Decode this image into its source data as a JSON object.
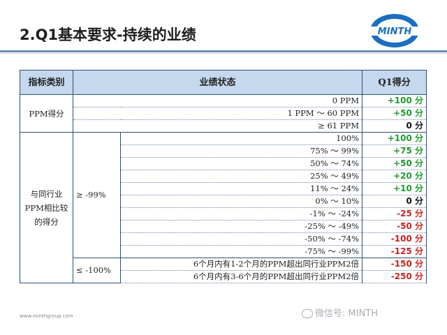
{
  "title": "2.Q1基本要求-持续的业绩",
  "logo_text": "MINTH",
  "colors": {
    "positive": "#1f9a2f",
    "negative": "#d11f1f",
    "header_bg": "#c5d8ee",
    "accent": "#6b8fb5"
  },
  "table": {
    "headers": [
      "指标类别",
      "业绩状态",
      "Q1得分"
    ],
    "ppm": {
      "label": "PPM得分",
      "rows": [
        {
          "status": "0 PPM",
          "score": "+100 分"
        },
        {
          "status": "1 PPM ～ 60 PPM",
          "score": "+50 分"
        },
        {
          "status": "≥ 61 PPM",
          "score": "0 分"
        }
      ]
    },
    "industry": {
      "label": "与同行业PPM相比较的得分",
      "group_a": {
        "label": "≥ -99%",
        "rows": [
          {
            "status": "100%",
            "score": "+100 分"
          },
          {
            "status": "75% ～ 99%",
            "score": "+75 分"
          },
          {
            "status": "50% ～ 74%",
            "score": "+50 分"
          },
          {
            "status": "25% ～ 49%",
            "score": "+20 分"
          },
          {
            "status": "11% ～ 24%",
            "score": "+10 分"
          },
          {
            "status": "0% ～ 10%",
            "score": "0 分"
          },
          {
            "status": "-1% ～ -24%",
            "score": "-25 分"
          },
          {
            "status": "-25% ～ -49%",
            "score": "-50 分"
          },
          {
            "status": "-50% ～ -74%",
            "score": "-100 分"
          },
          {
            "status": "-75% ～ -99%",
            "score": "-125 分"
          }
        ]
      },
      "group_b": {
        "label": "≤ -100%",
        "rows": [
          {
            "status": "6个月内有1-2个月的PPM超出同行业PPM2倍",
            "score": "-150 分"
          },
          {
            "status": "6个月内有3-6个月的PPM超出同行业PPM2倍",
            "score": "-250 分"
          }
        ]
      }
    }
  },
  "footer_url": "www.minthgroup.com",
  "watermark": "微信号: MINTH"
}
